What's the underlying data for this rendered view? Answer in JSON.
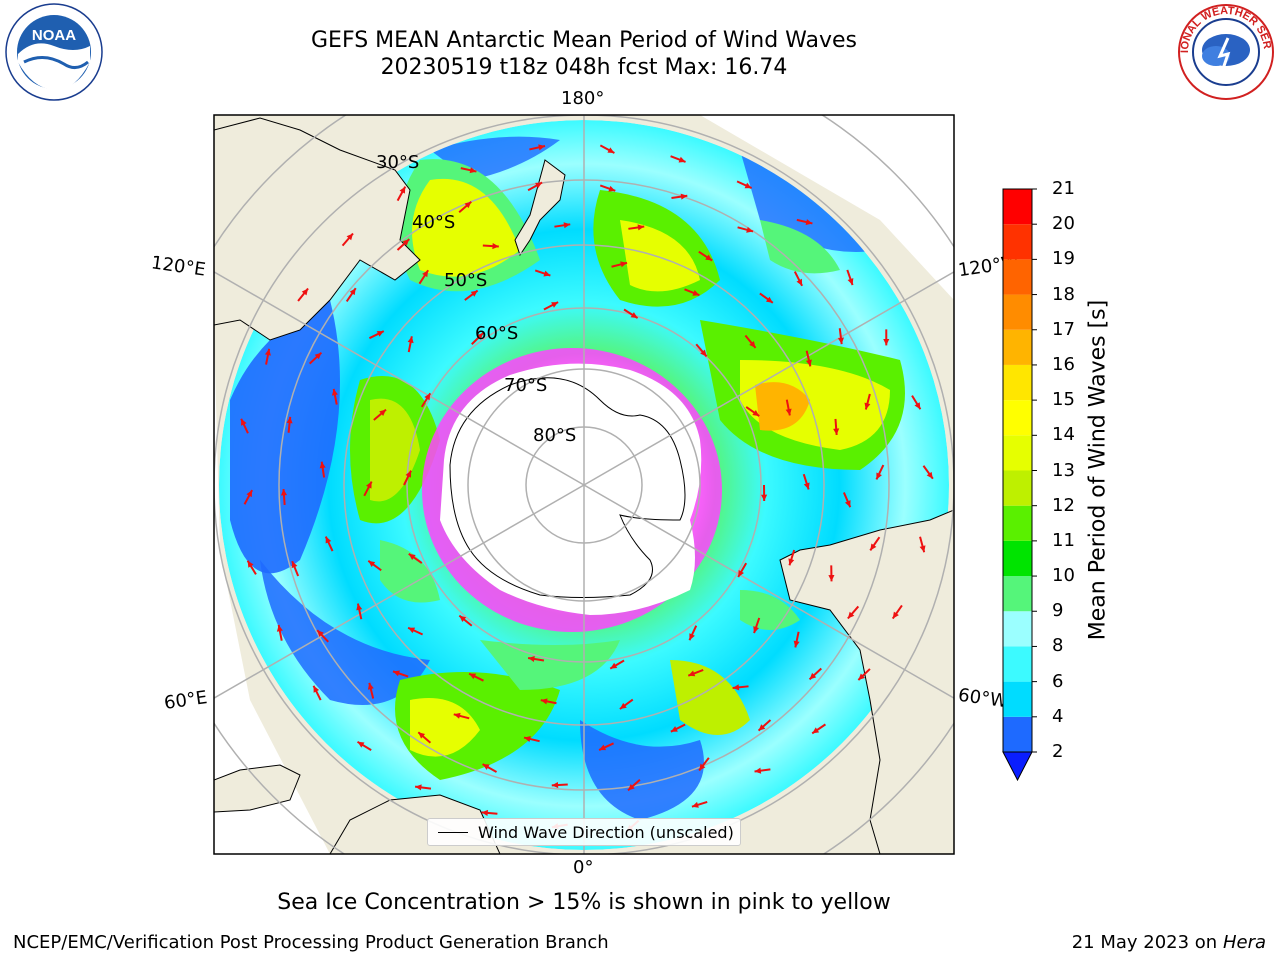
{
  "title": {
    "line1": "GEFS MEAN Antarctic Mean Period of Wind Waves",
    "line2": "20230519 t18z 048h fcst   Max: 16.74"
  },
  "logos": {
    "left": "NOAA",
    "left_ring_text": "NATIONAL OCEANIC AND ATMOSPHERIC ADMINISTRATION · U.S. DEPARTMENT OF COMMERCE",
    "right_ring_text": "NATIONAL WEATHER SERVICE"
  },
  "map": {
    "lon_labels": {
      "top": "180°",
      "bottom": "0°",
      "upper_left": "120°E",
      "upper_right": "120°W",
      "lower_left": "60°E",
      "lower_right": "60°W"
    },
    "lat_labels": [
      "30°S",
      "40°S",
      "50°S",
      "60°S",
      "70°S",
      "80°S"
    ],
    "colors": {
      "land": "#efecdc",
      "ice": "#ff44ff",
      "arrow": "#ee1111",
      "grid": "#b0b0b0"
    }
  },
  "colorbar": {
    "title": "Mean Period of Wind Waves [s]",
    "ticks": [
      "2",
      "4",
      "6",
      "8",
      "9",
      "10",
      "11",
      "12",
      "13",
      "14",
      "15",
      "16",
      "17",
      "18",
      "19",
      "20",
      "21"
    ],
    "colors": [
      "#1e6aff",
      "#00dcff",
      "#3cfaff",
      "#9bffff",
      "#55f57a",
      "#00e400",
      "#5af000",
      "#bef000",
      "#e6ff00",
      "#ffff00",
      "#ffe600",
      "#ffb400",
      "#ff8c00",
      "#ff6400",
      "#ff3200",
      "#ff0000"
    ],
    "extend_color": "#0a1eff"
  },
  "legend": {
    "label": "Wind Wave Direction (unscaled)"
  },
  "note": "Sea Ice Concentration > 15% is shown in pink to yellow",
  "footer": {
    "left": "NCEP/EMC/Verification Post Processing Product Generation Branch",
    "date": "21 May 2023 on",
    "machine": "Hera"
  }
}
